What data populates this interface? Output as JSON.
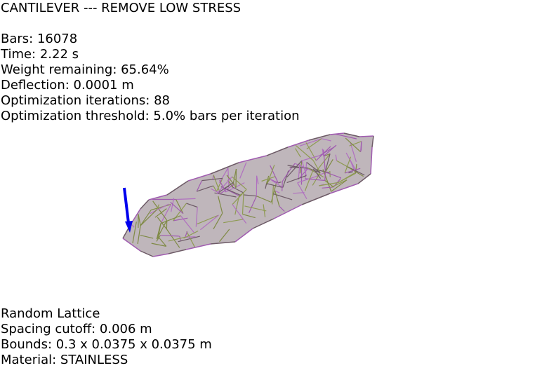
{
  "header": {
    "title": "CANTILEVER --- REMOVE LOW STRESS"
  },
  "stats": {
    "bars": "Bars: 16078",
    "time": "Time: 2.22 s",
    "weight": "Weight remaining: 65.64%",
    "deflection": "Deflection: 0.0001 m",
    "iterations": "Optimization iterations: 88",
    "threshold": "Optimization threshold: 5.0% bars per iteration"
  },
  "footer": {
    "lattice_type": "Random Lattice",
    "spacing": "Spacing cutoff: 0.006 m",
    "bounds": "Bounds: 0.3 x 0.0375 x 0.0375 m",
    "material": "Material: STAINLESS"
  },
  "colors": {
    "background": "#ffffff",
    "text": "#000000",
    "force_arrow": "#0000ee",
    "bar_purple": "#a05cb0",
    "bar_olive": "#7f8a45",
    "bar_dark": "#6d5a66"
  }
}
